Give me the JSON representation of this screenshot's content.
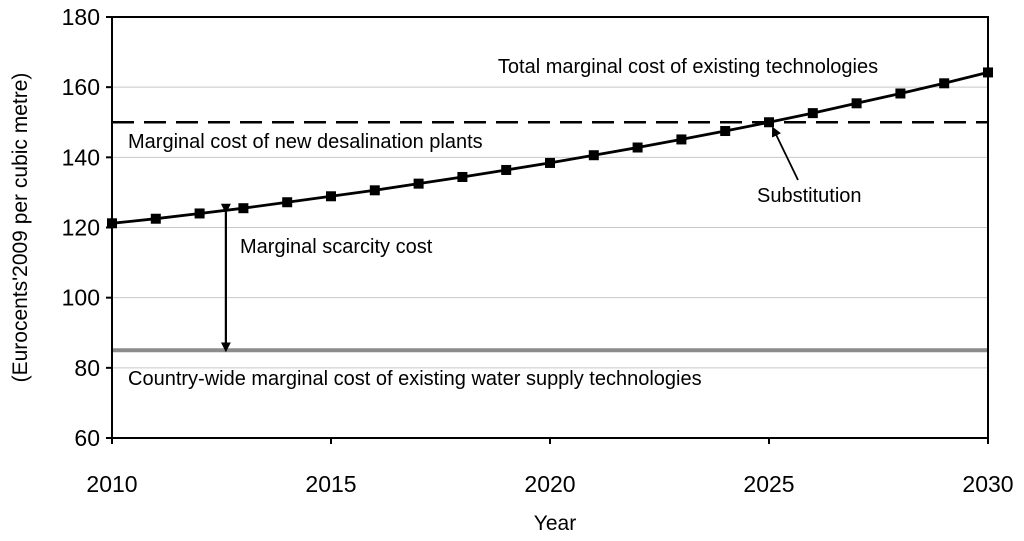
{
  "chart_data": {
    "type": "line",
    "title": "",
    "xlabel": "Year",
    "ylabel": "(Eurocents'2009 per cubic metre)",
    "xlim": [
      2010,
      2030
    ],
    "ylim": [
      60,
      180
    ],
    "xticks": [
      2010,
      2015,
      2020,
      2025,
      2030
    ],
    "yticks": [
      60,
      80,
      100,
      120,
      140,
      160,
      180
    ],
    "grid": "horizontal",
    "series": [
      {
        "name": "Total marginal cost of existing technologies",
        "style": "solid-with-square-markers",
        "color": "#000000",
        "x": [
          2010,
          2011,
          2012,
          2013,
          2014,
          2015,
          2016,
          2017,
          2018,
          2019,
          2020,
          2021,
          2022,
          2023,
          2024,
          2025,
          2026,
          2027,
          2028,
          2029,
          2030
        ],
        "values": [
          121.2,
          122.5,
          124.0,
          125.5,
          127.2,
          128.9,
          130.6,
          132.5,
          134.4,
          136.4,
          138.4,
          140.6,
          142.8,
          145.1,
          147.5,
          150.0,
          152.6,
          155.4,
          158.2,
          161.1,
          164.2
        ]
      },
      {
        "name": "Marginal cost of new desalination plants",
        "style": "dashed",
        "color": "#000000",
        "x": [
          2010,
          2030
        ],
        "values": [
          150,
          150
        ]
      },
      {
        "name": "Country-wide marginal cost of existing water supply technologies",
        "style": "solid",
        "color": "#8c8c8c",
        "x": [
          2010,
          2030
        ],
        "values": [
          85,
          85
        ]
      }
    ],
    "annotations": {
      "total_label": "Total marginal cost of existing technologies",
      "desal_label": "Marginal cost of new desalination plants",
      "substitution_label": "Substitution",
      "substitution_point": {
        "x": 2025,
        "y": 150
      },
      "scarcity_label": "Marginal scarcity cost",
      "scarcity_arrow": {
        "x": 2012.6,
        "y_from": 85,
        "y_to": 124.5
      },
      "country_label": "Country-wide marginal cost of existing water supply technologies"
    }
  }
}
